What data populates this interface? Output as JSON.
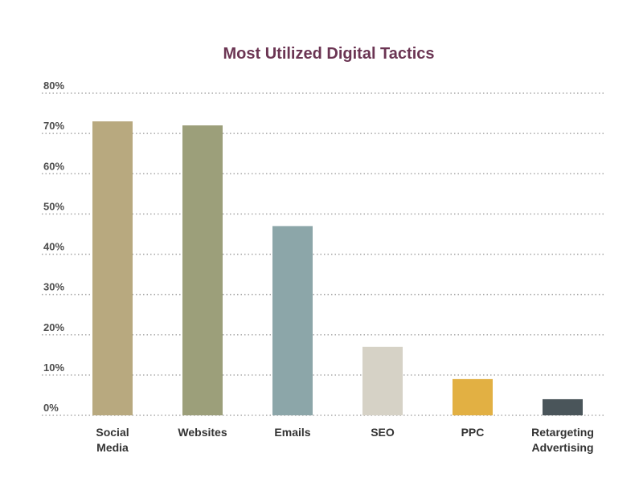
{
  "chart_data": {
    "type": "bar",
    "title": "Most Utilized Digital Tactics",
    "xlabel": "",
    "ylabel": "",
    "ylim": [
      0,
      80
    ],
    "yticks": [
      0,
      10,
      20,
      30,
      40,
      50,
      60,
      70,
      80
    ],
    "ytick_suffix": "%",
    "grid": true,
    "categories": [
      [
        "Social",
        "Media"
      ],
      [
        "Websites"
      ],
      [
        "Emails"
      ],
      [
        "SEO"
      ],
      [
        "PPC"
      ],
      [
        "Retargeting",
        "Advertising"
      ]
    ],
    "values": [
      73,
      72,
      47,
      17,
      9,
      4
    ],
    "colors": [
      "#b8a97f",
      "#9c9f7a",
      "#8ca6a9",
      "#d6d2c6",
      "#e2b043",
      "#4a555a"
    ],
    "title_color": "#6b3553"
  }
}
